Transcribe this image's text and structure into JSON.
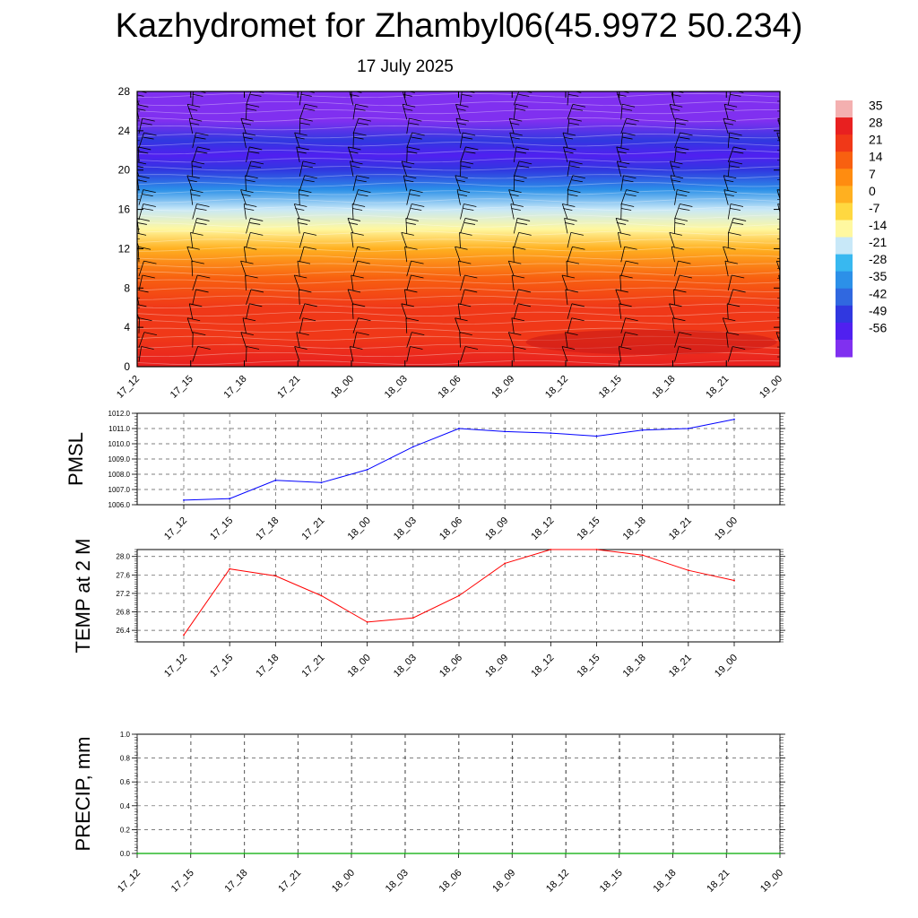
{
  "header": {
    "title": "Kazhydromet for Zhambyl06(45.9972 50.234)",
    "date": "17 July 2025"
  },
  "colors": {
    "pmsl_line": "#0000ff",
    "temp_line": "#ff0000",
    "precip_line": "#00aa00",
    "grid": "#000000"
  },
  "chart_data": [
    {
      "type": "heatmap",
      "description_kind": "vertical temperature cross-section with wind barbs",
      "x_ticks": [
        "17_12",
        "17_15",
        "17_18",
        "17_21",
        "18_00",
        "18_03",
        "18_06",
        "18_09",
        "18_12",
        "18_15",
        "18_18",
        "18_21",
        "19_00"
      ],
      "ylim": [
        0,
        28
      ],
      "y_ticks": [
        0,
        4,
        8,
        12,
        16,
        20,
        24,
        28
      ],
      "colorbar_labels": [
        "35",
        "28",
        "21",
        "14",
        "7",
        "0",
        "-7",
        "-14",
        "-21",
        "-28",
        "-35",
        "-42",
        "-49",
        "-56"
      ],
      "colorbar_values": [
        35,
        28,
        21,
        14,
        7,
        0,
        -7,
        -14,
        -21,
        -28,
        -35,
        -42,
        -49,
        -56
      ],
      "colorbar_colors": [
        "#f4b0b0",
        "#e82020",
        "#f03818",
        "#f86010",
        "#ff8c10",
        "#ffb020",
        "#ffd840",
        "#fff8a0",
        "#c8e8f8",
        "#38b8f0",
        "#2c90e8",
        "#3068e0",
        "#3038e0",
        "#5020f0",
        "#8030f0"
      ],
      "profile_heights": [
        0,
        3,
        6,
        9,
        12,
        14,
        16,
        18,
        20,
        21.5,
        23,
        25,
        28
      ],
      "profile_temps": [
        30,
        28,
        24,
        16,
        5,
        -8,
        -20,
        -32,
        -45,
        -52,
        -48,
        -56,
        -56
      ]
    },
    {
      "type": "line",
      "ylabel": "PMSL",
      "x": [
        "17_12",
        "17_15",
        "17_18",
        "17_21",
        "18_00",
        "18_03",
        "18_06",
        "18_09",
        "18_12",
        "18_15",
        "18_18",
        "18_21",
        "19_00"
      ],
      "series": [
        {
          "values": [
            1006.3,
            1006.4,
            1007.6,
            1007.45,
            1008.3,
            1009.8,
            1011.0,
            1010.8,
            1010.7,
            1010.5,
            1010.9,
            1011.0,
            1011.6
          ]
        }
      ],
      "ylim": [
        1006.0,
        1012.0
      ],
      "y_ticks": [
        "1006.0",
        "1007.0",
        "1008.0",
        "1009.0",
        "1010.0",
        "1011.0",
        "1012.0"
      ]
    },
    {
      "type": "line",
      "ylabel": "TEMP at 2 M",
      "x": [
        "17_12",
        "17_15",
        "17_18",
        "17_21",
        "18_00",
        "18_03",
        "18_06",
        "18_09",
        "18_12",
        "18_15",
        "18_18",
        "18_21",
        "19_00"
      ],
      "series": [
        {
          "values": [
            26.3,
            27.73,
            27.58,
            27.15,
            26.58,
            26.67,
            27.15,
            27.85,
            28.15,
            28.15,
            28.03,
            27.7,
            27.48
          ]
        }
      ],
      "ylim": [
        26.15,
        28.15
      ],
      "y_ticks": [
        "26.4",
        "26.8",
        "27.2",
        "27.6",
        "28.0"
      ]
    },
    {
      "type": "line",
      "ylabel": "PRECIP, mm",
      "x": [
        "17_12",
        "17_15",
        "17_18",
        "17_21",
        "18_00",
        "18_03",
        "18_06",
        "18_09",
        "18_12",
        "18_15",
        "18_18",
        "18_21",
        "19_00"
      ],
      "series": [
        {
          "values": [
            0,
            0,
            0,
            0,
            0,
            0,
            0,
            0,
            0,
            0,
            0,
            0,
            0
          ]
        }
      ],
      "ylim": [
        0.0,
        1.0
      ],
      "y_ticks": [
        "0.0",
        "0.2",
        "0.4",
        "0.6",
        "0.8",
        "1.0"
      ]
    }
  ]
}
